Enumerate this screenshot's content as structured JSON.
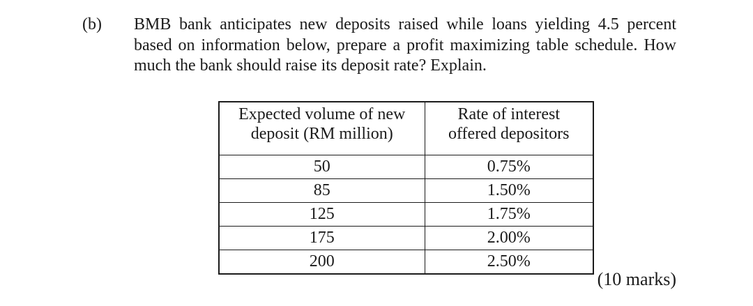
{
  "page": {
    "background": "#ffffff",
    "ink_color": "#1b1b1b"
  },
  "question": {
    "label": "(b)",
    "lines": [
      "BMB bank anticipates new deposits raised while loans yielding 4.5 percent",
      "based on information below, prepare a profit maximizing table schedule. How",
      "much the bank should raise its deposit rate? Explain."
    ]
  },
  "table": {
    "headers": [
      {
        "line1": "Expected volume of new",
        "line2": "deposit (RM million)"
      },
      {
        "line1": "Rate of interest",
        "line2": "offered depositors"
      }
    ],
    "rows": [
      {
        "volume": "50",
        "rate": "0.75%"
      },
      {
        "volume": "85",
        "rate": "1.50%"
      },
      {
        "volume": "125",
        "rate": "1.75%"
      },
      {
        "volume": "175",
        "rate": "2.00%"
      },
      {
        "volume": "200",
        "rate": "2.50%"
      }
    ]
  },
  "marks_label": "(10 marks)"
}
